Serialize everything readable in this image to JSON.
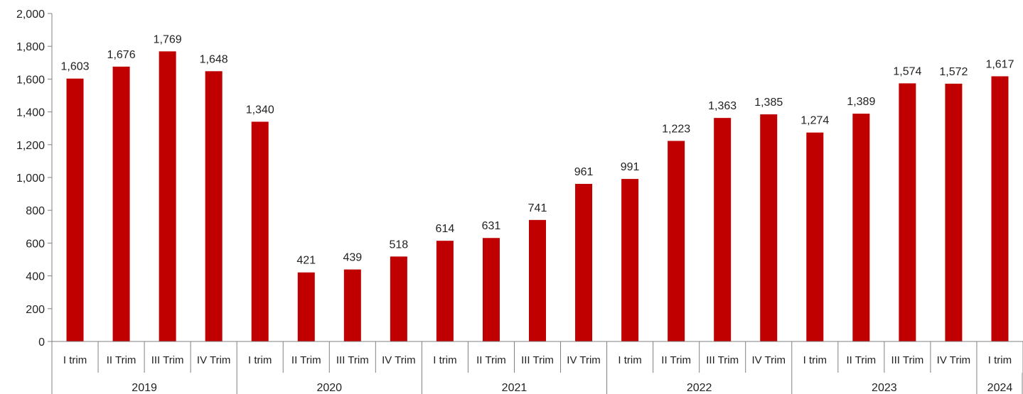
{
  "chart_data": {
    "type": "bar",
    "categories": [
      "I trim",
      "II Trim",
      "III Trim",
      "IV Trim",
      "I trim",
      "II Trim",
      "III Trim",
      "IV Trim",
      "I trim",
      "II Trim",
      "III Trim",
      "IV Trim",
      "I trim",
      "II Trim",
      "III Trim",
      "IV Trim",
      "I trim",
      "II Trim",
      "III Trim",
      "IV Trim",
      "I trim"
    ],
    "values": [
      1603,
      1676,
      1769,
      1648,
      1340,
      421,
      439,
      518,
      614,
      631,
      741,
      961,
      991,
      1223,
      1363,
      1385,
      1274,
      1389,
      1574,
      1572,
      1617
    ],
    "value_labels": [
      "1,603",
      "1,676",
      "1,769",
      "1,648",
      "1,340",
      "421",
      "439",
      "518",
      "614",
      "631",
      "741",
      "961",
      "991",
      "1,223",
      "1,363",
      "1,385",
      "1,274",
      "1,389",
      "1,574",
      "1,572",
      "1,617"
    ],
    "groups": [
      {
        "label": "2019",
        "count": 4
      },
      {
        "label": "2020",
        "count": 4
      },
      {
        "label": "2021",
        "count": 4
      },
      {
        "label": "2022",
        "count": 4
      },
      {
        "label": "2023",
        "count": 4
      },
      {
        "label": "2024",
        "count": 1
      }
    ],
    "yticks": [
      0,
      200,
      400,
      600,
      800,
      1000,
      1200,
      1400,
      1600,
      1800,
      2000
    ],
    "ytick_labels": [
      "0",
      "200",
      "400",
      "600",
      "800",
      "1,000",
      "1,200",
      "1,400",
      "1,600",
      "1,800",
      "2,000"
    ],
    "ylim": [
      0,
      2000
    ],
    "grid": false,
    "legend": "none",
    "bar_color": "#c00000"
  }
}
